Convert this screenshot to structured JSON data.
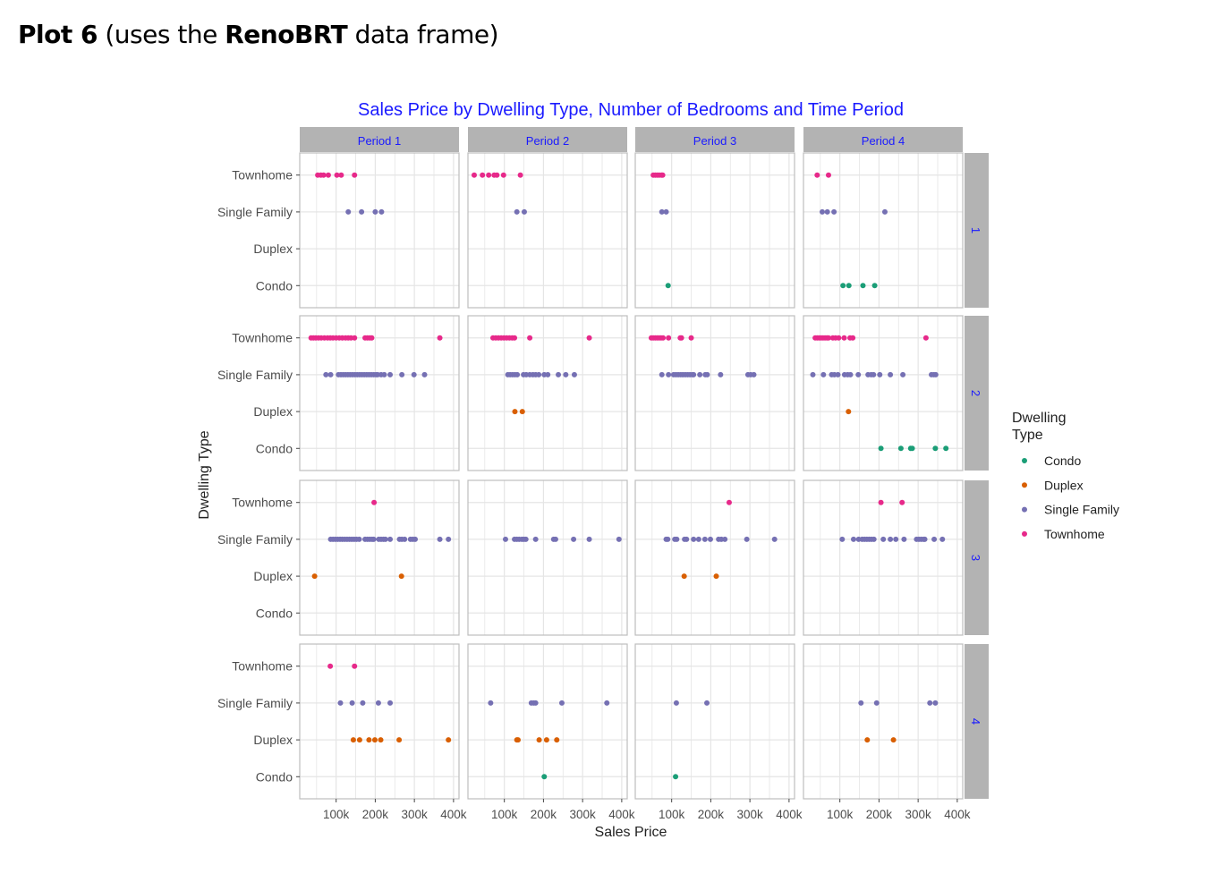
{
  "heading": {
    "part1_bold": "Plot 6",
    "part2": " (uses the ",
    "part3_bold": "RenoBRT",
    "part4": " data frame)"
  },
  "chart_data": {
    "type": "scatter",
    "title": "Sales Price by Dwelling Type, Number of Bedrooms and Time Period",
    "xlabel": "Sales Price",
    "ylabel": "Dwelling Type",
    "xlim": [
      7000,
      414000
    ],
    "x_ticks": [
      100000,
      200000,
      300000,
      400000
    ],
    "x_tick_labels": [
      "100k",
      "200k",
      "300k",
      "400k"
    ],
    "y_categories": [
      "Condo",
      "Duplex",
      "Single Family",
      "Townhome"
    ],
    "grid": true,
    "title_color": "#1a1aff",
    "facet_cols": [
      "Period 1",
      "Period 2",
      "Period 3",
      "Period 4"
    ],
    "facet_rows": [
      "1",
      "2",
      "3",
      "4"
    ],
    "legend": {
      "title": "Dwelling Type",
      "placement": "right",
      "entries": [
        {
          "name": "Condo",
          "color": "#1b9e77"
        },
        {
          "name": "Duplex",
          "color": "#d95f02"
        },
        {
          "name": "Single Family",
          "color": "#7570b3"
        },
        {
          "name": "Townhome",
          "color": "#e7298a"
        }
      ]
    },
    "panels": [
      {
        "row": "1",
        "col": "Period 1",
        "Townhome": [
          53000,
          61000,
          68000,
          80000,
          102000,
          113000,
          147000
        ],
        "Single Family": [
          131000,
          165000,
          200000,
          216000
        ],
        "Duplex": [],
        "Condo": []
      },
      {
        "row": "1",
        "col": "Period 2",
        "Townhome": [
          23000,
          44000,
          60000,
          74000,
          81000,
          98000,
          141000
        ],
        "Single Family": [
          132000,
          151000
        ],
        "Duplex": [],
        "Condo": []
      },
      {
        "row": "1",
        "col": "Period 3",
        "Townhome": [
          53000,
          58000,
          63000,
          68000,
          74000,
          77000
        ],
        "Single Family": [
          75000,
          86000
        ],
        "Duplex": [],
        "Condo": [
          91000
        ]
      },
      {
        "row": "1",
        "col": "Period 4",
        "Townhome": [
          42000,
          71000
        ],
        "Single Family": [
          55000,
          68000,
          85000,
          215000
        ],
        "Duplex": [],
        "Condo": [
          108000,
          123000,
          159000,
          189000
        ]
      },
      {
        "row": "2",
        "col": "Period 1",
        "Townhome": [
          36000,
          42000,
          48000,
          55000,
          62000,
          70000,
          78000,
          85000,
          92000,
          100000,
          108000,
          116000,
          124000,
          131000,
          138000,
          147000,
          174000,
          180000,
          186000,
          191000,
          365000
        ],
        "Single Family": [
          74000,
          86000,
          106000,
          112000,
          118000,
          124000,
          130000,
          136000,
          142000,
          148000,
          154000,
          160000,
          166000,
          172000,
          178000,
          184000,
          190000,
          196000,
          202000,
          206000,
          215000,
          223000,
          238000,
          268000,
          299000,
          326000
        ],
        "Duplex": [],
        "Condo": []
      },
      {
        "row": "2",
        "col": "Period 2",
        "Townhome": [
          71000,
          78000,
          85000,
          92000,
          99000,
          106000,
          113000,
          120000,
          126000,
          165000,
          317000
        ],
        "Single Family": [
          109000,
          115000,
          121000,
          127000,
          133000,
          149000,
          156000,
          165000,
          173000,
          180000,
          188000,
          202000,
          211000,
          238000,
          257000,
          279000
        ],
        "Duplex": [
          127000,
          146000
        ],
        "Condo": []
      },
      {
        "row": "2",
        "col": "Period 3",
        "Townhome": [
          48000,
          53000,
          58000,
          63000,
          68000,
          73000,
          78000,
          92000,
          122000,
          125000,
          150000
        ],
        "Single Family": [
          75000,
          92000,
          105000,
          111000,
          117000,
          123000,
          129000,
          135000,
          141000,
          147000,
          153000,
          156000,
          172000,
          186000,
          191000,
          225000,
          295000,
          302000,
          310000
        ],
        "Duplex": [],
        "Condo": []
      },
      {
        "row": "2",
        "col": "Period 4",
        "Townhome": [
          37000,
          42000,
          47000,
          52000,
          57000,
          62000,
          67000,
          71000,
          82000,
          89000,
          97000,
          111000,
          126000,
          133000,
          320000
        ],
        "Single Family": [
          31000,
          58000,
          79000,
          86000,
          95000,
          112000,
          120000,
          127000,
          147000,
          172000,
          180000,
          186000,
          202000,
          229000,
          261000,
          334000,
          340000,
          345000
        ],
        "Duplex": [
          122000
        ],
        "Condo": [
          205000,
          256000,
          281000,
          285000,
          344000,
          371000
        ]
      },
      {
        "row": "3",
        "col": "Period 1",
        "Townhome": [
          197000
        ],
        "Single Family": [
          86000,
          92000,
          98000,
          104000,
          110000,
          116000,
          122000,
          128000,
          134000,
          140000,
          146000,
          152000,
          159000,
          174000,
          180000,
          186000,
          192000,
          196000,
          209000,
          215000,
          221000,
          226000,
          238000,
          262000,
          268000,
          275000,
          290000,
          296000,
          302000,
          365000,
          387000
        ],
        "Duplex": [
          45000,
          267000
        ],
        "Condo": []
      },
      {
        "row": "3",
        "col": "Period 2",
        "Townhome": [],
        "Single Family": [
          103000,
          126000,
          132000,
          138000,
          145000,
          150000,
          155000,
          180000,
          226000,
          231000,
          277000,
          317000,
          393000
        ],
        "Duplex": [],
        "Condo": []
      },
      {
        "row": "3",
        "col": "Period 3",
        "Townhome": [
          247000
        ],
        "Single Family": [
          86000,
          90000,
          108000,
          113000,
          133000,
          138000,
          156000,
          169000,
          185000,
          199000,
          220000,
          227000,
          236000,
          292000,
          363000
        ],
        "Duplex": [
          132000,
          214000
        ],
        "Condo": []
      },
      {
        "row": "3",
        "col": "Period 4",
        "Townhome": [
          205000,
          259000
        ],
        "Single Family": [
          106000,
          135000,
          148000,
          157000,
          163000,
          169000,
          175000,
          181000,
          187000,
          211000,
          229000,
          243000,
          264000,
          296000,
          302000,
          308000,
          314000,
          317000,
          341000,
          362000
        ],
        "Duplex": [],
        "Condo": []
      },
      {
        "row": "4",
        "col": "Period 1",
        "Townhome": [
          85000,
          147000
        ],
        "Single Family": [
          111000,
          141000,
          168000,
          208000,
          238000
        ],
        "Duplex": [
          144000,
          160000,
          184000,
          199000,
          214000,
          261000,
          387000
        ],
        "Condo": []
      },
      {
        "row": "4",
        "col": "Period 2",
        "Townhome": [],
        "Single Family": [
          65000,
          169000,
          175000,
          180000,
          247000,
          362000
        ],
        "Duplex": [
          132000,
          135000,
          189000,
          208000,
          234000
        ],
        "Condo": [
          202000
        ]
      },
      {
        "row": "4",
        "col": "Period 3",
        "Townhome": [],
        "Single Family": [
          112000,
          190000
        ],
        "Duplex": [],
        "Condo": [
          110000
        ]
      },
      {
        "row": "4",
        "col": "Period 4",
        "Townhome": [],
        "Single Family": [
          154000,
          194000,
          330000,
          344000
        ],
        "Duplex": [
          170000,
          237000
        ],
        "Condo": []
      }
    ]
  }
}
